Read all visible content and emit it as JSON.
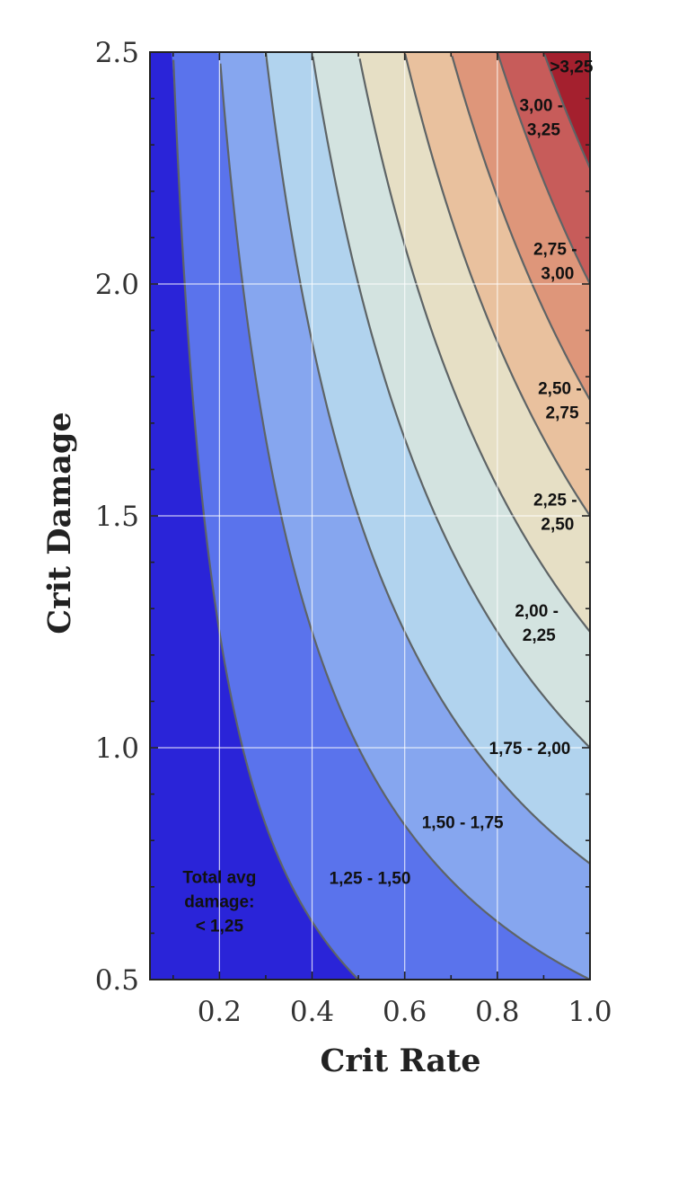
{
  "chart_data": {
    "type": "contour",
    "function": "total_avg_damage = 1 + crit_rate * crit_damage",
    "xlabel": "Crit Rate",
    "ylabel": "Crit Damage",
    "xlim": [
      0.05,
      1.0
    ],
    "ylim": [
      0.5,
      2.5
    ],
    "xticks": [
      0.2,
      0.4,
      0.6,
      0.8,
      1.0
    ],
    "yticks": [
      0.5,
      1.0,
      1.5,
      2.0,
      2.5
    ],
    "xtick_labels": [
      "0.2",
      "0.4",
      "0.6",
      "0.8",
      "1.0"
    ],
    "ytick_labels": [
      "0.5",
      "1.0",
      "1.5",
      "2.0",
      "2.5"
    ],
    "grid": true,
    "contour_levels": [
      1.25,
      1.5,
      1.75,
      2.0,
      2.25,
      2.5,
      2.75,
      3.0,
      3.25
    ],
    "regions": [
      {
        "lower": null,
        "upper": 1.25,
        "color": "#2a24d8",
        "label": [
          "Total avg",
          "damage:",
          "< 1,25"
        ],
        "label_pos": [
          0.2,
          0.67
        ]
      },
      {
        "lower": 1.25,
        "upper": 1.5,
        "color": "#5a73ec",
        "label": [
          "1,25 - 1,50"
        ],
        "label_pos": [
          0.525,
          0.72
        ]
      },
      {
        "lower": 1.5,
        "upper": 1.75,
        "color": "#86a6ef",
        "label": [
          "1,50 - 1,75"
        ],
        "label_pos": [
          0.725,
          0.84
        ]
      },
      {
        "lower": 1.75,
        "upper": 2.0,
        "color": "#b1d3ee",
        "label": [
          "1,75 - 2,00"
        ],
        "label_pos": [
          0.87,
          1.0
        ]
      },
      {
        "lower": 2.0,
        "upper": 2.25,
        "color": "#d3e3e0",
        "label": [
          "2,00 - ",
          "2,25"
        ],
        "label_pos": [
          0.89,
          1.27
        ]
      },
      {
        "lower": 2.25,
        "upper": 2.5,
        "color": "#e6dfc5",
        "label": [
          "2,25 - ",
          "2,50"
        ],
        "label_pos": [
          0.93,
          1.51
        ]
      },
      {
        "lower": 2.5,
        "upper": 2.75,
        "color": "#e9c19e",
        "label": [
          "2,50 - ",
          "2,75"
        ],
        "label_pos": [
          0.94,
          1.75
        ]
      },
      {
        "lower": 2.75,
        "upper": 3.0,
        "color": "#de967a",
        "label": [
          "2,75 - ",
          "3,00"
        ],
        "label_pos": [
          0.93,
          2.05
        ]
      },
      {
        "lower": 3.0,
        "upper": 3.25,
        "color": "#c75c5a",
        "label": [
          "3,00 - ",
          "3,25"
        ],
        "label_pos": [
          0.9,
          2.36
        ]
      },
      {
        "lower": 3.25,
        "upper": null,
        "color": "#a4202e",
        "label": [
          ">3,25"
        ],
        "label_pos": [
          0.96,
          2.47
        ]
      }
    ]
  }
}
